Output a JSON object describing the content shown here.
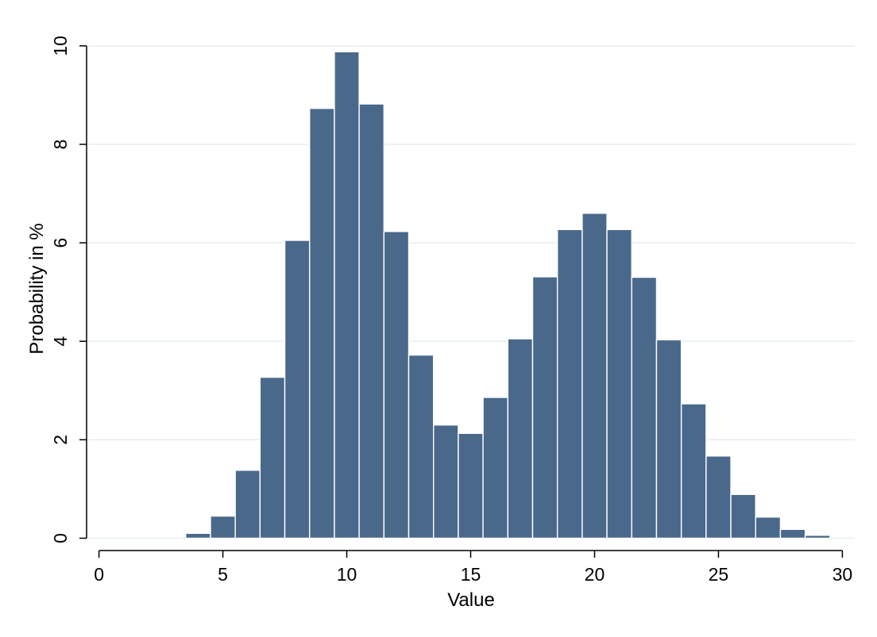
{
  "chart_data": {
    "type": "bar",
    "title": "",
    "xlabel": "Value",
    "ylabel": "Probability in %",
    "xlim": [
      -0.5,
      30.5
    ],
    "ylim": [
      -0.25,
      10.4
    ],
    "x_ticks": [
      0,
      5,
      10,
      15,
      20,
      25,
      30
    ],
    "y_ticks": [
      0,
      2,
      4,
      6,
      8,
      10
    ],
    "grid": true,
    "legend": "none",
    "bar_color": "#4a698a",
    "bar_edge_color": "#ffffff",
    "axis_color": "#000000",
    "grid_color": "#e8eff2",
    "bins": [
      {
        "x0": 3.5,
        "x1": 4.5,
        "value": 0.1
      },
      {
        "x0": 4.5,
        "x1": 5.5,
        "value": 0.45
      },
      {
        "x0": 5.5,
        "x1": 6.5,
        "value": 1.38
      },
      {
        "x0": 6.5,
        "x1": 7.5,
        "value": 3.27
      },
      {
        "x0": 7.5,
        "x1": 8.5,
        "value": 6.05
      },
      {
        "x0": 8.5,
        "x1": 9.5,
        "value": 8.73
      },
      {
        "x0": 9.5,
        "x1": 10.5,
        "value": 9.88
      },
      {
        "x0": 10.5,
        "x1": 11.5,
        "value": 8.82
      },
      {
        "x0": 11.5,
        "x1": 12.5,
        "value": 6.23
      },
      {
        "x0": 12.5,
        "x1": 13.5,
        "value": 3.72
      },
      {
        "x0": 13.5,
        "x1": 14.5,
        "value": 2.3
      },
      {
        "x0": 14.5,
        "x1": 15.5,
        "value": 2.13
      },
      {
        "x0": 15.5,
        "x1": 16.5,
        "value": 2.86
      },
      {
        "x0": 16.5,
        "x1": 17.5,
        "value": 4.05
      },
      {
        "x0": 17.5,
        "x1": 18.5,
        "value": 5.31
      },
      {
        "x0": 18.5,
        "x1": 19.5,
        "value": 6.27
      },
      {
        "x0": 19.5,
        "x1": 20.5,
        "value": 6.6
      },
      {
        "x0": 20.5,
        "x1": 21.5,
        "value": 6.27
      },
      {
        "x0": 21.5,
        "x1": 22.5,
        "value": 5.3
      },
      {
        "x0": 22.5,
        "x1": 23.5,
        "value": 4.03
      },
      {
        "x0": 23.5,
        "x1": 24.5,
        "value": 2.73
      },
      {
        "x0": 24.5,
        "x1": 25.5,
        "value": 1.67
      },
      {
        "x0": 25.5,
        "x1": 26.5,
        "value": 0.89
      },
      {
        "x0": 26.5,
        "x1": 27.5,
        "value": 0.43
      },
      {
        "x0": 27.5,
        "x1": 28.5,
        "value": 0.18
      },
      {
        "x0": 28.5,
        "x1": 29.5,
        "value": 0.06
      }
    ]
  }
}
